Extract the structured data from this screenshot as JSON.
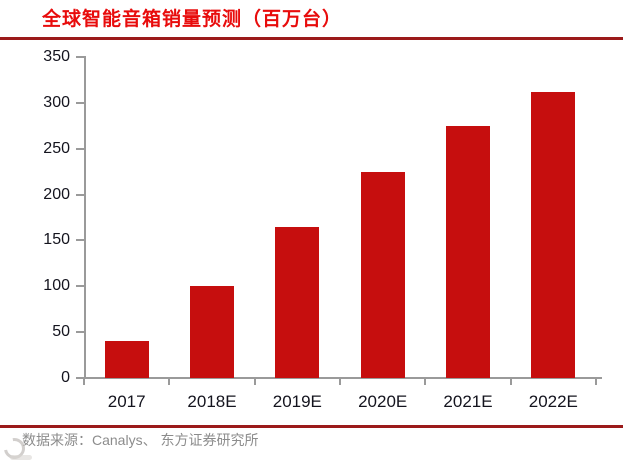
{
  "title": "全球智能音箱销量预测（百万台）",
  "footer": {
    "source_label": "数据来源：Canalys、 东方证券研究所"
  },
  "colors": {
    "bar": "#C60E0E",
    "title_text": "#E80C0C",
    "rule": "#9B1A1A",
    "axis": "#9A9A9A",
    "tick_label": "#14141e",
    "footer_text": "#8C8C8C"
  },
  "icons": {
    "watermark": "watermark-ring"
  },
  "chart_data": {
    "type": "bar",
    "title": "全球智能音箱销量预测（百万台）",
    "categories": [
      "2017",
      "2018E",
      "2019E",
      "2020E",
      "2021E",
      "2022E"
    ],
    "values": [
      40,
      100,
      165,
      225,
      275,
      312
    ],
    "xlabel": "",
    "ylabel": "",
    "ylim": [
      0,
      350
    ],
    "yticks": [
      0,
      50,
      100,
      150,
      200,
      250,
      300,
      350
    ],
    "grid": false,
    "legend": "none",
    "bar_color": "#C60E0E",
    "source_note": "数据来源：Canalys、 东方证券研究所"
  }
}
